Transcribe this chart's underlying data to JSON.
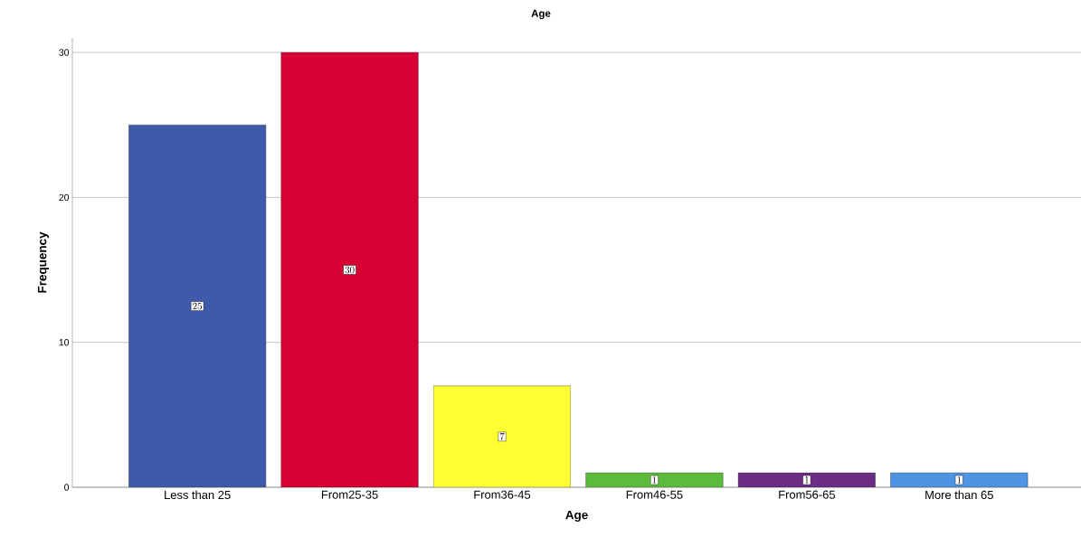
{
  "chart_data": {
    "type": "bar",
    "title": "Age",
    "xlabel": "Age",
    "ylabel": "Frequency",
    "categories": [
      "Less than 25",
      "From25-35",
      "From36-45",
      "From46-55",
      "From56-65",
      "More than 65"
    ],
    "values": [
      25,
      30,
      7,
      1,
      1,
      1
    ],
    "colors": [
      "#3e5aa8",
      "#d60032",
      "#ffff33",
      "#5cbb3a",
      "#6b2c84",
      "#4f94e3"
    ],
    "ylim": [
      0,
      31
    ],
    "yticks": [
      0,
      10,
      20,
      30
    ],
    "grid": "y",
    "data_labels": true
  }
}
